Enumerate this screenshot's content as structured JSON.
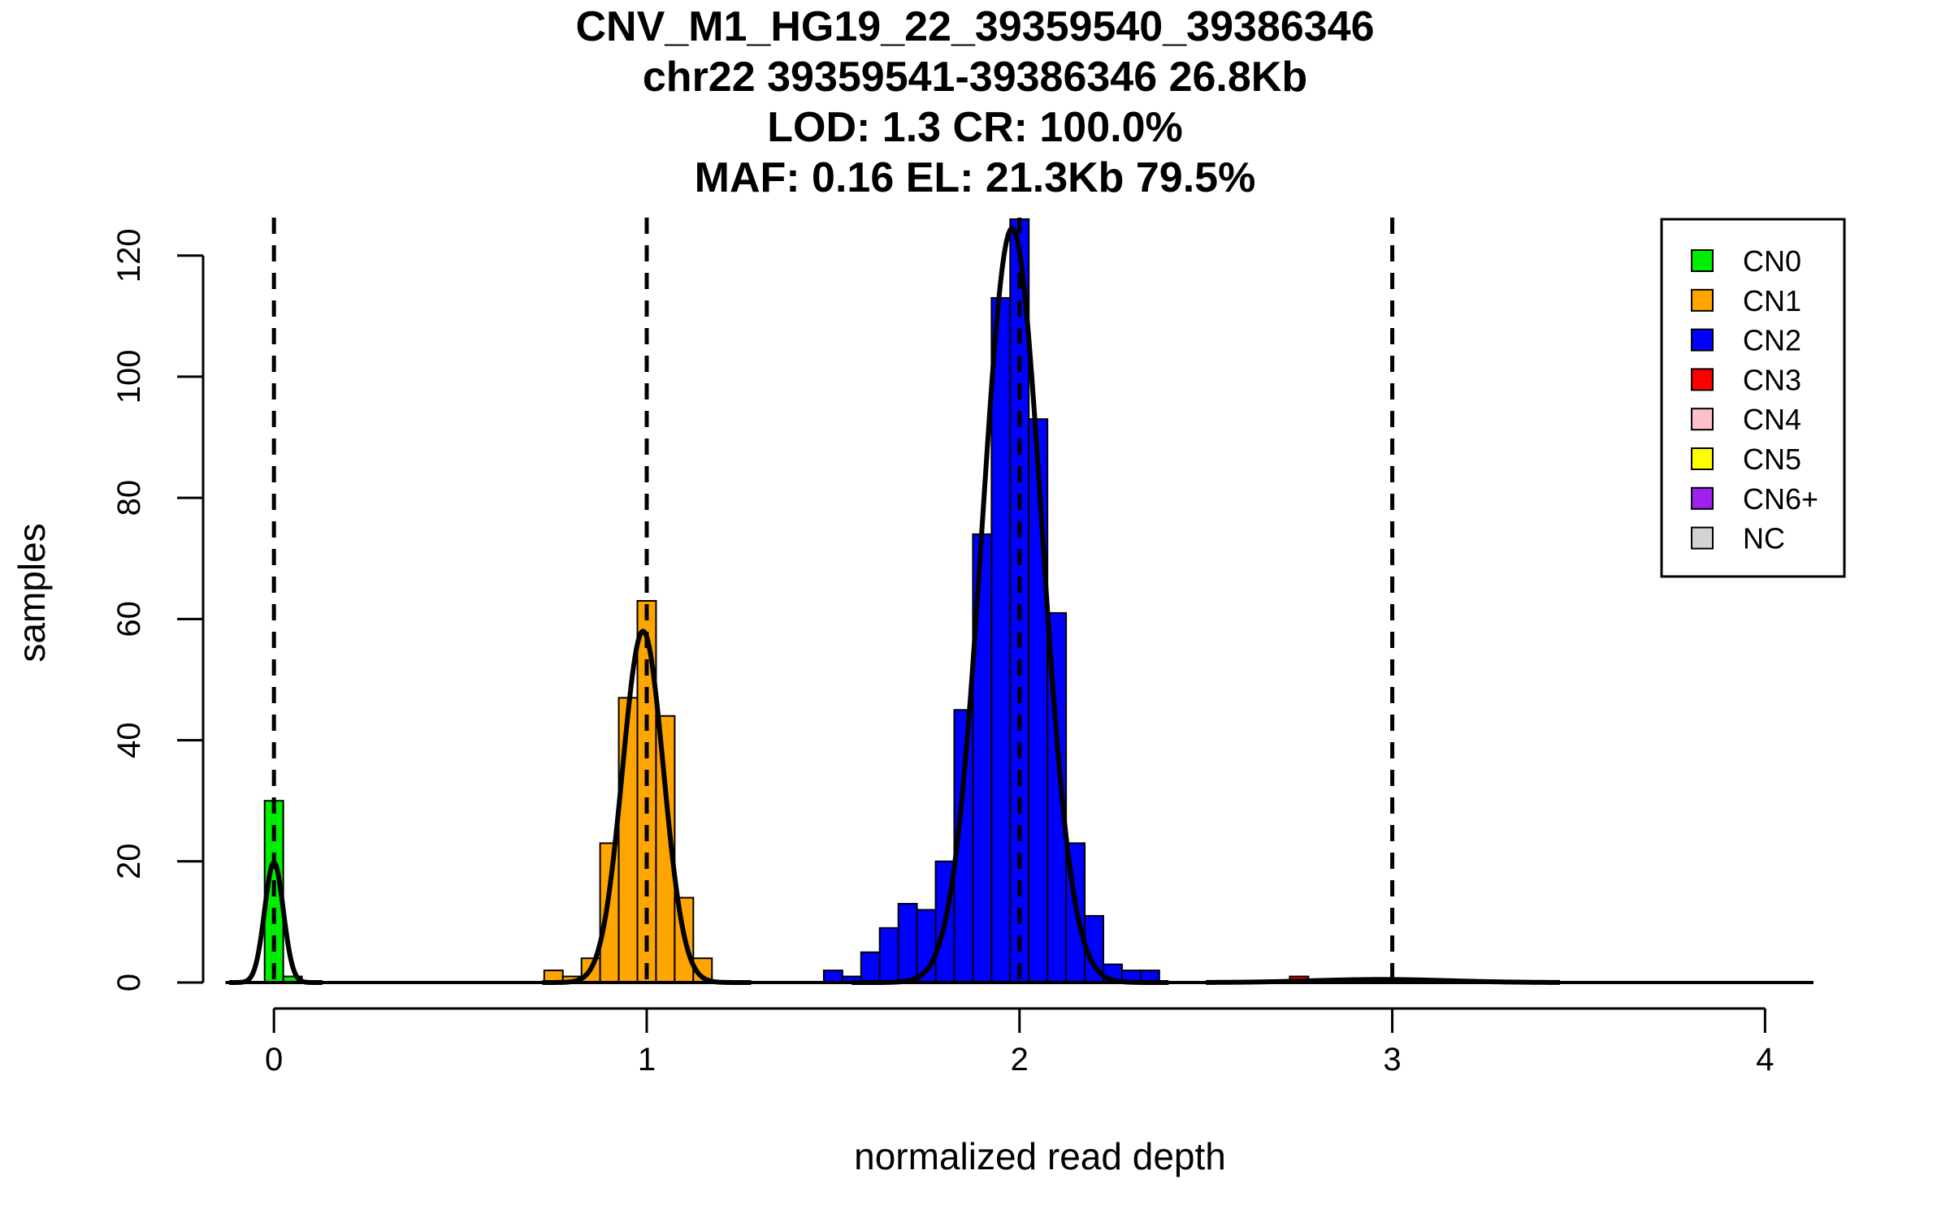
{
  "chart_data": {
    "type": "histogram",
    "title_lines": [
      "CNV_M1_HG19_22_39359540_39386346",
      "chr22 39359541-39386346 26.8Kb",
      "LOD: 1.3 CR: 100.0%",
      "MAF: 0.16 EL: 21.3Kb 79.5%"
    ],
    "xlabel": "normalized read depth",
    "ylabel": "samples",
    "xlim": [
      -0.19,
      4.13
    ],
    "ylim": [
      0,
      128
    ],
    "xticks": [
      0,
      1,
      2,
      3,
      4
    ],
    "yticks": [
      0,
      20,
      40,
      60,
      80,
      100,
      120
    ],
    "bin_width": 0.05,
    "dashed_lines_x": [
      0,
      1,
      2,
      3
    ],
    "legend": {
      "position": "top-right",
      "entries": [
        {
          "label": "CN0",
          "color": "#00ee00"
        },
        {
          "label": "CN1",
          "color": "#ffa500"
        },
        {
          "label": "CN2",
          "color": "#0000ff"
        },
        {
          "label": "CN3",
          "color": "#ff0000"
        },
        {
          "label": "CN4",
          "color": "#ffc0cb"
        },
        {
          "label": "CN5",
          "color": "#ffff00"
        },
        {
          "label": "CN6+",
          "color": "#a020f0"
        },
        {
          "label": "NC",
          "color": "#d3d3d3"
        }
      ]
    },
    "bins": [
      {
        "x0": -0.025,
        "count": 30,
        "cn": "CN0"
      },
      {
        "x0": 0.025,
        "count": 1,
        "cn": "CN0"
      },
      {
        "x0": 0.725,
        "count": 2,
        "cn": "CN1"
      },
      {
        "x0": 0.775,
        "count": 1,
        "cn": "CN1"
      },
      {
        "x0": 0.825,
        "count": 4,
        "cn": "CN1"
      },
      {
        "x0": 0.875,
        "count": 23,
        "cn": "CN1"
      },
      {
        "x0": 0.925,
        "count": 47,
        "cn": "CN1"
      },
      {
        "x0": 0.975,
        "count": 63,
        "cn": "CN1"
      },
      {
        "x0": 1.025,
        "count": 44,
        "cn": "CN1"
      },
      {
        "x0": 1.075,
        "count": 14,
        "cn": "CN1"
      },
      {
        "x0": 1.125,
        "count": 4,
        "cn": "CN1"
      },
      {
        "x0": 1.475,
        "count": 2,
        "cn": "CN2"
      },
      {
        "x0": 1.525,
        "count": 1,
        "cn": "CN2"
      },
      {
        "x0": 1.575,
        "count": 5,
        "cn": "CN2"
      },
      {
        "x0": 1.625,
        "count": 9,
        "cn": "CN2"
      },
      {
        "x0": 1.675,
        "count": 13,
        "cn": "CN2"
      },
      {
        "x0": 1.725,
        "count": 12,
        "cn": "CN2"
      },
      {
        "x0": 1.775,
        "count": 20,
        "cn": "CN2"
      },
      {
        "x0": 1.825,
        "count": 45,
        "cn": "CN2"
      },
      {
        "x0": 1.875,
        "count": 74,
        "cn": "CN2"
      },
      {
        "x0": 1.925,
        "count": 113,
        "cn": "CN2"
      },
      {
        "x0": 1.975,
        "count": 126,
        "cn": "CN2"
      },
      {
        "x0": 2.025,
        "count": 93,
        "cn": "CN2"
      },
      {
        "x0": 2.075,
        "count": 61,
        "cn": "CN2"
      },
      {
        "x0": 2.125,
        "count": 23,
        "cn": "CN2"
      },
      {
        "x0": 2.175,
        "count": 11,
        "cn": "CN2"
      },
      {
        "x0": 2.225,
        "count": 3,
        "cn": "CN2"
      },
      {
        "x0": 2.275,
        "count": 2,
        "cn": "CN2"
      },
      {
        "x0": 2.325,
        "count": 2,
        "cn": "CN2"
      },
      {
        "x0": 2.725,
        "count": 1,
        "cn": "CN3"
      }
    ],
    "density_curves": [
      {
        "mean": 0.0,
        "sd": 0.025,
        "peak": 19.8,
        "range": [
          -0.12,
          0.13
        ]
      },
      {
        "mean": 0.99,
        "sd": 0.055,
        "peak": 58,
        "range": [
          0.72,
          1.28
        ]
      },
      {
        "mean": 1.98,
        "sd": 0.08,
        "peak": 124.5,
        "range": [
          1.55,
          2.4
        ]
      },
      {
        "mean": 2.97,
        "sd": 0.18,
        "peak": 0.5,
        "range": [
          2.5,
          3.45
        ]
      }
    ]
  }
}
